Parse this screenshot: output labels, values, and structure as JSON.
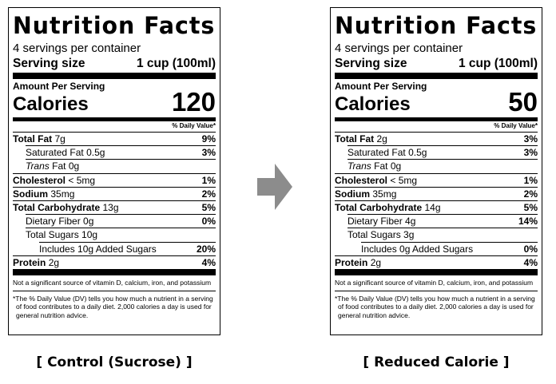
{
  "panels": [
    {
      "title": "Nutrition Facts",
      "servings": "4 servings per container",
      "serving_size_label": "Serving size",
      "serving_size_value": "1 cup (100ml)",
      "amount_per_serving": "Amount Per Serving",
      "calories_label": "Calories",
      "calories_value": "120",
      "dv_header": "% Daily Value*",
      "rows": {
        "total_fat": {
          "name": "Total Fat",
          "amount": "7g",
          "pct": "9%"
        },
        "sat_fat": {
          "name": "Saturated Fat",
          "amount": "0.5g",
          "pct": "3%"
        },
        "trans_fat": {
          "name": "Trans",
          "suffix": "Fat",
          "amount": "0g"
        },
        "cholesterol": {
          "name": "Cholesterol",
          "amount": "< 5mg",
          "pct": "1%"
        },
        "sodium": {
          "name": "Sodium",
          "amount": "35mg",
          "pct": "2%"
        },
        "total_carb": {
          "name": "Total Carbohydrate",
          "amount": "13g",
          "pct": "5%"
        },
        "fiber": {
          "name": "Dietary Fiber",
          "amount": "0g",
          "pct": "0%"
        },
        "total_sugars": {
          "name": "Total Sugars",
          "amount": "10g"
        },
        "added_sugars": {
          "text": "Includes 10g Added Sugars",
          "pct": "20%"
        },
        "protein": {
          "name": "Protein",
          "amount": "2g",
          "pct": "4%"
        }
      },
      "note": "Not a significant source of vitamin D, calcium, iron, and potassium",
      "footnote": "*The % Daily Value (DV) tells you how much a nutrient in a serving of food contributes to a daily diet. 2,000 calories a day is used for general nutrition advice.",
      "caption": "[ Control (Sucrose) ]"
    },
    {
      "title": "Nutrition Facts",
      "servings": "4 servings per container",
      "serving_size_label": "Serving size",
      "serving_size_value": "1 cup (100ml)",
      "amount_per_serving": "Amount Per Serving",
      "calories_label": "Calories",
      "calories_value": "50",
      "dv_header": "% Daily Value*",
      "rows": {
        "total_fat": {
          "name": "Total Fat",
          "amount": "2g",
          "pct": "3%"
        },
        "sat_fat": {
          "name": "Saturated Fat",
          "amount": "0.5g",
          "pct": "3%"
        },
        "trans_fat": {
          "name": "Trans",
          "suffix": "Fat",
          "amount": "0g"
        },
        "cholesterol": {
          "name": "Cholesterol",
          "amount": "< 5mg",
          "pct": "1%"
        },
        "sodium": {
          "name": "Sodium",
          "amount": "35mg",
          "pct": "2%"
        },
        "total_carb": {
          "name": "Total Carbohydrate",
          "amount": "14g",
          "pct": "5%"
        },
        "fiber": {
          "name": "Dietary Fiber",
          "amount": "4g",
          "pct": "14%"
        },
        "total_sugars": {
          "name": "Total Sugars",
          "amount": "3g"
        },
        "added_sugars": {
          "text": "Includes 0g Added Sugars",
          "pct": "0%"
        },
        "protein": {
          "name": "Protein",
          "amount": "2g",
          "pct": "4%"
        }
      },
      "note": "Not a significant source of vitamin D, calcium, iron, and potassium",
      "footnote": "*The % Daily Value (DV) tells you how much a nutrient in a serving of food contributes to a daily diet. 2,000 calories a day is used for general nutrition advice.",
      "caption": "[ Reduced Calorie ]"
    }
  ],
  "arrow": {
    "icon": "right-arrow-icon",
    "color": "#8c8c8c"
  }
}
